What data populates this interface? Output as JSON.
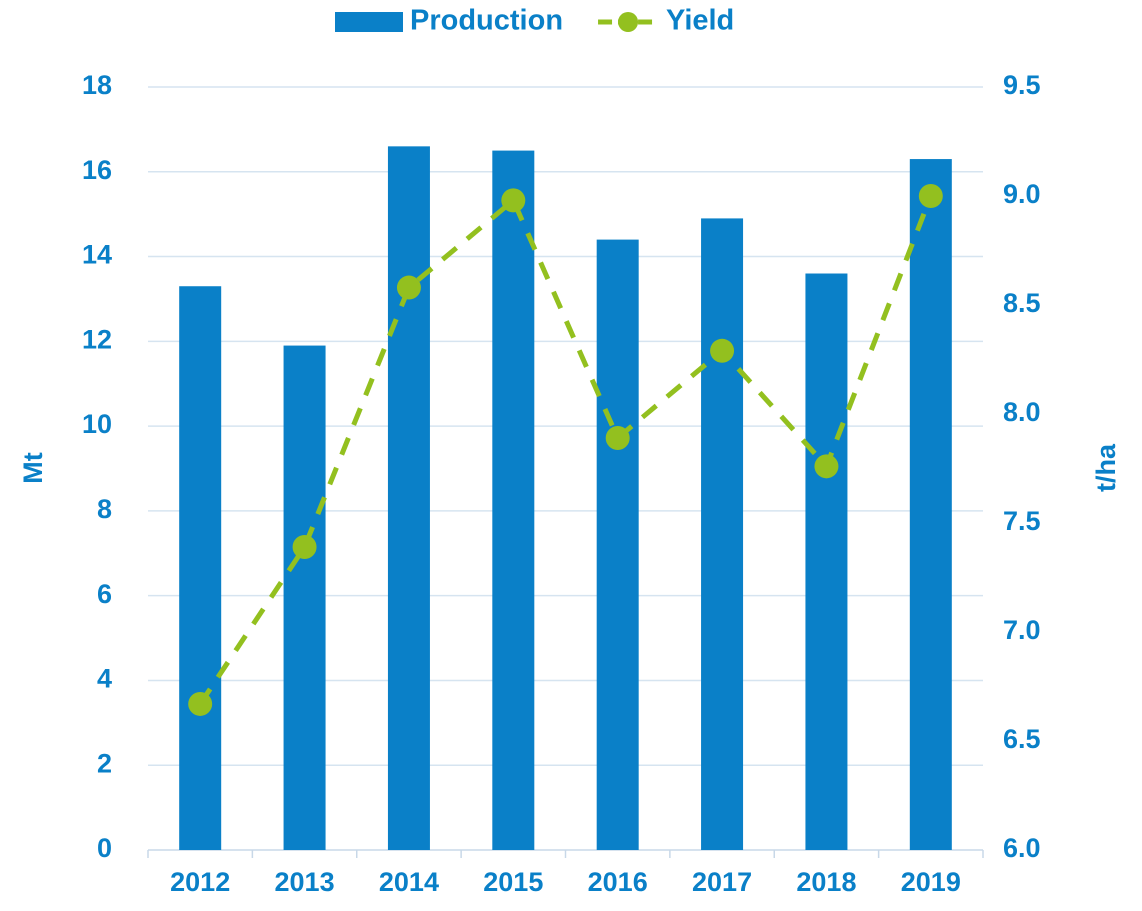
{
  "chart_data": {
    "type": "bar_line",
    "categories": [
      "2012",
      "2013",
      "2014",
      "2015",
      "2016",
      "2017",
      "2018",
      "2019"
    ],
    "series": [
      {
        "name": "Production",
        "type": "bar",
        "color": "#0a80c8",
        "values": [
          13.3,
          11.9,
          16.6,
          16.5,
          14.4,
          14.9,
          13.6,
          16.3
        ]
      },
      {
        "name": "Yield",
        "type": "line",
        "axis": "y2",
        "color": "#93c01f",
        "values": [
          6.67,
          7.39,
          8.58,
          8.98,
          7.89,
          8.29,
          7.76,
          9.0
        ]
      }
    ],
    "ylabel": "Mt",
    "y2label": "t/ha",
    "ylim": [
      0,
      18
    ],
    "yticks": [
      0,
      2,
      4,
      6,
      8,
      10,
      12,
      14,
      16,
      18
    ],
    "y2lim": [
      6,
      9.5
    ],
    "y2ticks": [
      {
        "value": 6,
        "label": "6.0"
      },
      6.5,
      {
        "value": 7,
        "label": "7.0"
      },
      7.5,
      {
        "value": 8,
        "label": "8.0"
      },
      8.5,
      {
        "value": 9,
        "label": "9.0"
      },
      9.5
    ],
    "grid": true,
    "legend": "top"
  }
}
